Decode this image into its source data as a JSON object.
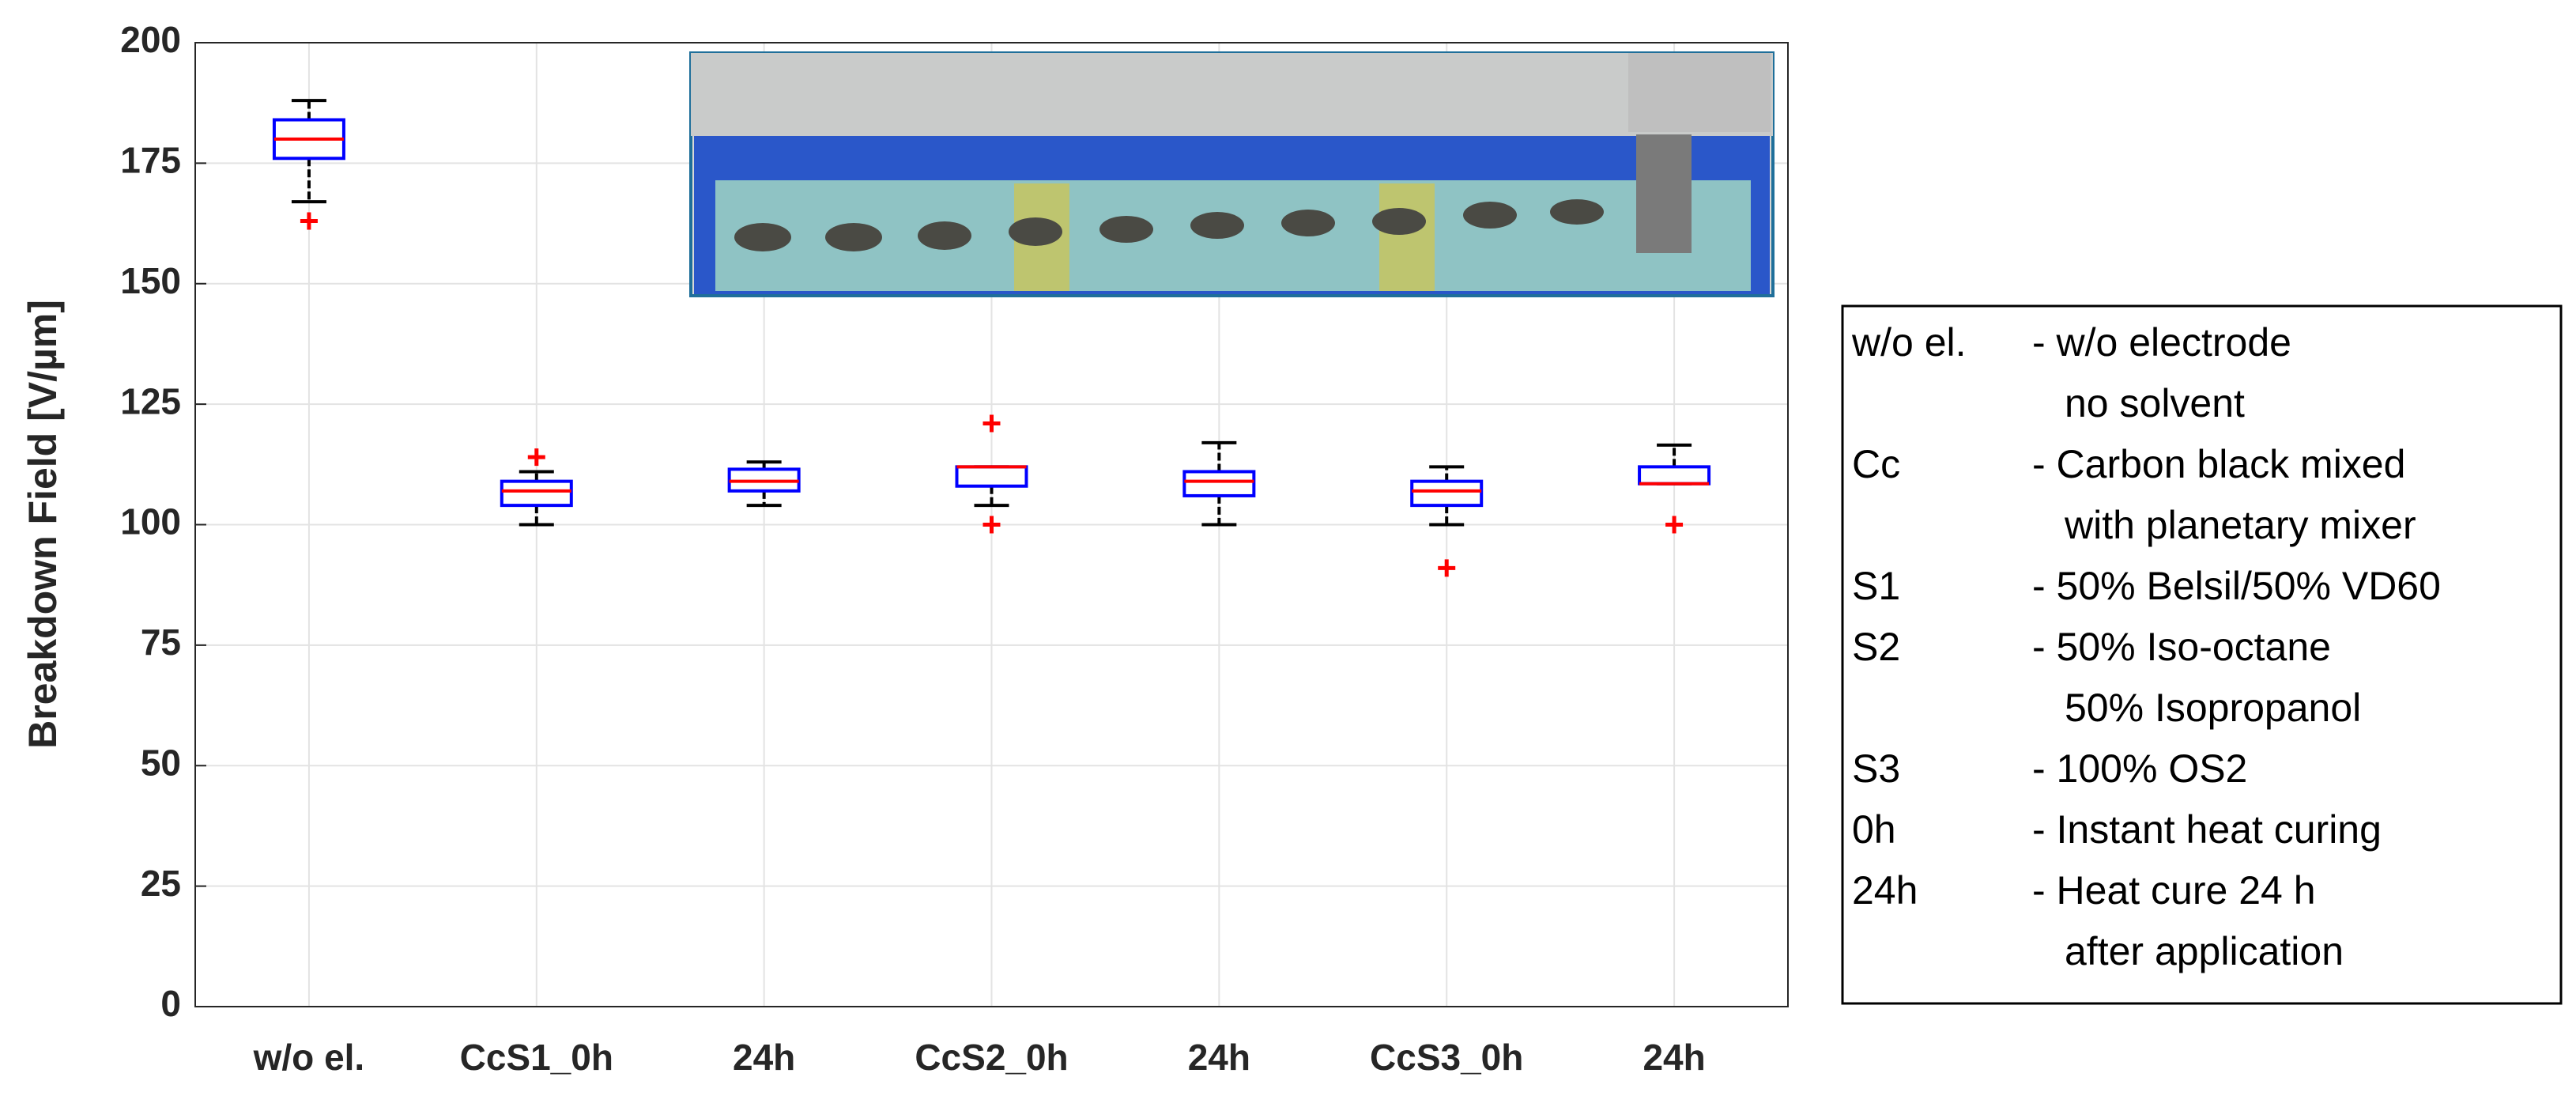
{
  "chart_data": {
    "type": "box",
    "ylabel": "Breakdown Field [V/µm]",
    "categories": [
      "w/o el.",
      "CcS1_0h",
      "24h",
      "CcS2_0h",
      "24h",
      "CcS3_0h",
      "24h"
    ],
    "stats": [
      {
        "whislo": 167,
        "q1": 176,
        "med": 180,
        "q3": 184,
        "whishi": 188,
        "fliers": [
          163
        ]
      },
      {
        "whislo": 100,
        "q1": 104,
        "med": 107,
        "q3": 109,
        "whishi": 111,
        "fliers": [
          114
        ]
      },
      {
        "whislo": 104,
        "q1": 107,
        "med": 109,
        "q3": 111.5,
        "whishi": 113,
        "fliers": []
      },
      {
        "whislo": 104,
        "q1": 108,
        "med": 112,
        "q3": 112,
        "whishi": 112,
        "fliers": [
          121,
          100
        ]
      },
      {
        "whislo": 100,
        "q1": 106,
        "med": 109,
        "q3": 111,
        "whishi": 117,
        "fliers": []
      },
      {
        "whislo": 100,
        "q1": 104,
        "med": 107,
        "q3": 109,
        "whishi": 112,
        "fliers": [
          91
        ]
      },
      {
        "whislo": 108.5,
        "q1": 108.5,
        "med": 108.5,
        "q3": 112,
        "whishi": 116.5,
        "fliers": [
          100
        ]
      }
    ],
    "box_color": "#0000ff",
    "median_color": "#ff0000",
    "whisker_color": "#000000",
    "flier_color": "#ff0000",
    "ylim": [
      0,
      200
    ],
    "yticks": [
      0,
      25,
      50,
      75,
      100,
      125,
      150,
      175,
      200
    ],
    "grid": true,
    "notes": [
      {
        "key": "w/o el.",
        "lines": [
          "- w/o electrode",
          "no solvent"
        ]
      },
      {
        "key": "Cc",
        "lines": [
          "- Carbon black mixed",
          "with planetary mixer"
        ]
      },
      {
        "key": "S1",
        "lines": [
          "- 50% Belsil/50% VD60"
        ]
      },
      {
        "key": "S2",
        "lines": [
          "- 50% Iso-octane",
          "50% Isopropanol"
        ]
      },
      {
        "key": "S3",
        "lines": [
          "- 100% OS2"
        ]
      },
      {
        "key": "0h",
        "lines": [
          "- Instant heat curing"
        ]
      },
      {
        "key": "24h",
        "lines": [
          "- Heat cure 24 h",
          "after application"
        ]
      }
    ]
  }
}
